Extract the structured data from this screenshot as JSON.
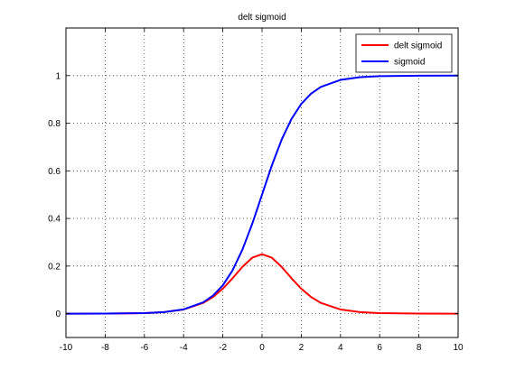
{
  "chart_data": {
    "type": "line",
    "title": "delt sigmoid",
    "xlabel": "",
    "ylabel": "",
    "xlim": [
      -10,
      10
    ],
    "ylim": [
      -0.1,
      1.2
    ],
    "x_ticks": [
      -10,
      -8,
      -6,
      -4,
      -2,
      0,
      2,
      4,
      6,
      8,
      10
    ],
    "y_ticks": [
      0,
      0.2,
      0.4,
      0.6,
      0.8,
      1
    ],
    "x_tick_labels": [
      "-10",
      "-8",
      "-6",
      "-4",
      "-2",
      "0",
      "2",
      "4",
      "6",
      "8",
      "10"
    ],
    "y_tick_labels": [
      "0",
      "0.2",
      "0.4",
      "0.6",
      "0.8",
      "1"
    ],
    "grid": true,
    "grid_style": "dotted",
    "legend_position": "top-right",
    "x": [
      -10,
      -8,
      -6,
      -5,
      -4,
      -3,
      -2.5,
      -2,
      -1.5,
      -1,
      -0.5,
      0,
      0.5,
      1,
      1.5,
      2,
      2.5,
      3,
      4,
      5,
      6,
      8,
      10
    ],
    "series": [
      {
        "name": "delt sigmoid",
        "color": "#ff0000",
        "values": [
          5e-05,
          0.0003,
          0.0025,
          0.0066,
          0.0177,
          0.0452,
          0.0701,
          0.105,
          0.1491,
          0.1966,
          0.235,
          0.25,
          0.235,
          0.1966,
          0.1491,
          0.105,
          0.0701,
          0.0452,
          0.0177,
          0.0066,
          0.0025,
          0.0003,
          5e-05
        ]
      },
      {
        "name": "sigmoid",
        "color": "#0000ff",
        "values": [
          5e-05,
          0.0003,
          0.0025,
          0.0067,
          0.018,
          0.0474,
          0.0759,
          0.1192,
          0.1824,
          0.2689,
          0.3775,
          0.5,
          0.6225,
          0.7311,
          0.8176,
          0.8808,
          0.9241,
          0.9526,
          0.982,
          0.9933,
          0.9975,
          0.9997,
          0.99995
        ]
      }
    ]
  }
}
